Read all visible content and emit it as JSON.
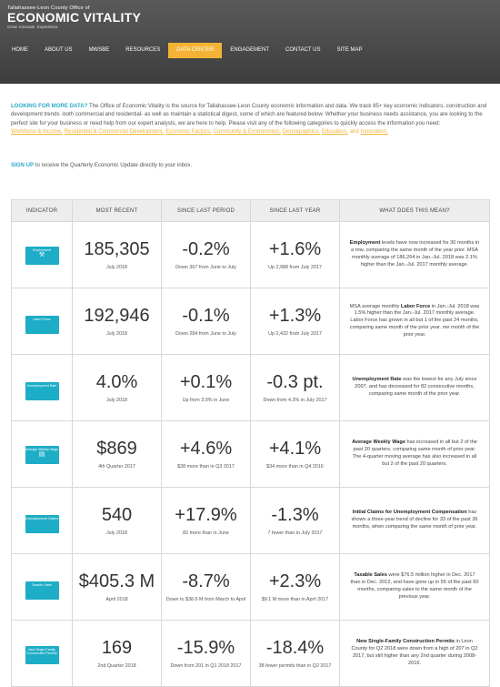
{
  "header": {
    "logo_small": "Tallahassee-Leon County Office of",
    "logo_big": "ECONOMIC VITALITY",
    "logo_tag": "Grow. Innovate. Experience.",
    "nav": [
      {
        "label": "HOME",
        "active": false
      },
      {
        "label": "ABOUT US",
        "active": false
      },
      {
        "label": "MWSBE",
        "active": false
      },
      {
        "label": "RESOURCES",
        "active": false
      },
      {
        "label": "DATA CENTER",
        "active": true
      },
      {
        "label": "ENGAGEMENT",
        "active": false
      },
      {
        "label": "CONTACT US",
        "active": false
      },
      {
        "label": "SITE MAP",
        "active": false
      }
    ]
  },
  "intro": {
    "lead": "LOOKING FOR MORE DATA?",
    "body": " The Office of Economic Vitality is the source for Tallahassee-Leon County economic information and data. We track 85+ key economic indicators, construction and development trends -both commercial and residential- as well as maintain a statistical digest, some of which are featured below. Whether your business needs assistance, you are looking to the perfect site for your business or need help from our expert analysts, we are here to help. Please visit any of the following categories to quickly access the information you need:",
    "links": [
      "Workforce & Income,",
      "Residential & Commercial Development,",
      "Economic Factors,",
      "Community & Environment,",
      "Demographics,",
      "Education,",
      "and",
      "Innovation."
    ]
  },
  "signup": {
    "link": "SIGN UP",
    "text": " to receive the Quarterly Economic Update directly to your inbox."
  },
  "table": {
    "headers": [
      "INDICATOR",
      "MOST RECENT",
      "SINCE LAST PERIOD",
      "SINCE LAST YEAR",
      "WHAT DOES THIS MEAN?"
    ],
    "rows": [
      {
        "ind": "Employment",
        "icon": "⚒",
        "recent": "185,305",
        "recent_sub": "July 2018",
        "period": "-0.2%",
        "period_sub": "Down 367 from June to July",
        "year": "+1.6%",
        "year_sub": "Up 2,988 from July 2017",
        "desc_bold": "Employment",
        "desc": " levels have now increased for 30 months in a row, comparing the same month of the year prior. MSA monthly average of 186,264 in Jan.-Jul. 2018 was 2.1% higher than the Jan.-Jul. 2017 monthly average."
      },
      {
        "ind": "Labor Force",
        "icon": "",
        "recent": "192,946",
        "recent_sub": "July 2018",
        "period": "-0.1%",
        "period_sub": "Down 284 from June to July",
        "year": "+1.3%",
        "year_sub": "Up 2,432 from July 2017",
        "desc_bold": "Labor Force",
        "desc_pre": "MSA average monthly ",
        "desc": " in Jan.-Jul. 2018 was 1.5% higher than the Jan.-Jul. 2017 monthly average. Labor Force has grown in all but 1 of the past 24 months, comparing same month of the prior year. me month of the prior year."
      },
      {
        "ind": "Unemployment Rate",
        "icon": "",
        "recent": "4.0%",
        "recent_sub": "July 2018",
        "period": "+0.1%",
        "period_sub": "Up from 3.9% in June",
        "year": "-0.3 pt.",
        "year_sub": "Down from 4.3% in July 2017",
        "desc_bold": "Unemployment Rate",
        "desc": " was the lowest for any July since 2007, and has decreased for 82 consecutive months, comparing same month of the prior year."
      },
      {
        "ind": "Average Weekly Wage",
        "icon": "▤",
        "recent": "$869",
        "recent_sub": "4th Quarter 2017",
        "period": "+4.6%",
        "period_sub": "$38 more than in Q3 2017",
        "year": "+4.1%",
        "year_sub": "$34 more than in Q4 2016",
        "desc_bold": "Average Weekly Wage",
        "desc": " has increased in all but 2 of the past 20 quarters, comparing same month of prior year. The 4-quarter moving average has also increased in all but 2 of the past 20 quarters."
      },
      {
        "ind": "Unemployment Claims",
        "icon": "",
        "recent": "540",
        "recent_sub": "July 2018",
        "period": "+17.9%",
        "period_sub": "82 more than in June",
        "year": "-1.3%",
        "year_sub": "7 fewer than in July 2017",
        "desc_bold": "Initial Claims for Unemployment Compensation",
        "desc": " has shown a three-year trend of decline for 33 of the past 36 months, when comparing the same month of prior year."
      },
      {
        "ind": "Taxable Sales",
        "icon": "",
        "recent": "$405.3 M",
        "recent_sub": "April 2018",
        "period": "-8.7%",
        "period_sub": "Down to $38.6 M from March to April",
        "year": "+2.3%",
        "year_sub": "$9.1 M more than in April 2017",
        "desc_bold": "Taxable Sales",
        "desc": " were $76.5 million higher in Dec. 2017 than in Dec. 2012, and have gone up in 55 of the past 60 months, comparing sales to the same month of the previous year."
      },
      {
        "ind": "New Single-Family Construction Permits",
        "icon": "",
        "recent": "169",
        "recent_sub": "2nd Quarter 2018",
        "period": "-15.9%",
        "period_sub": "Down from 201 in Q1 2018 2017",
        "year": "-18.4%",
        "year_sub": "38 fewer permits than in Q2 2017",
        "desc_bold": "New Single-Family Construction Permits",
        "desc": " in Leon County for Q2 2018 were down from a high of 207 in Q2 2017, but still higher than any 2nd quarter during 2008-2016."
      }
    ]
  }
}
